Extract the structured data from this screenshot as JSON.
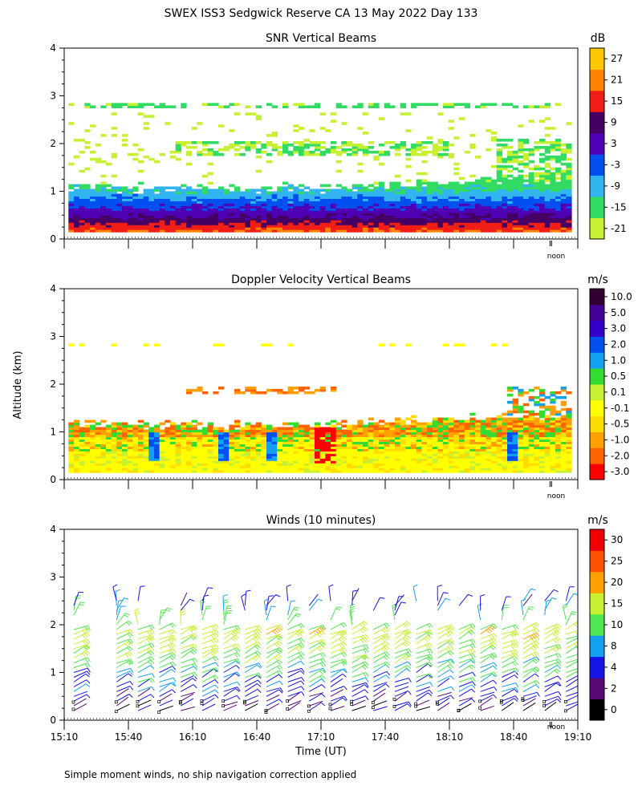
{
  "title": "SWEX ISS3 Sedgwick Reserve CA  13 May 2022 Day 133",
  "footnote": "Simple moment winds, no ship navigation correction applied",
  "ylabel": "Altitude (km)",
  "xlabel": "Time (UT)",
  "noon_label": "noon",
  "x_ticks": [
    "15:10",
    "15:40",
    "16:10",
    "16:40",
    "17:10",
    "17:40",
    "18:10",
    "18:40",
    "19:10"
  ],
  "y_ticks": [
    "0",
    "1",
    "2",
    "3",
    "4"
  ],
  "colors": {
    "snr": [
      "#c8f032",
      "#32dc64",
      "#32b4f0",
      "#0050f0",
      "#5000b4",
      "#460064",
      "#f01e14",
      "#ff8200",
      "#ffc800"
    ],
    "vel": [
      "#ff0000",
      "#ff6400",
      "#ffa000",
      "#ffdc00",
      "#ffff00",
      "#c8f032",
      "#32dc32",
      "#14a0f0",
      "#0050f0",
      "#3200c8",
      "#460096",
      "#320032"
    ],
    "wind": [
      "#000000",
      "#5a0a78",
      "#1414e6",
      "#14a0f0",
      "#50e650",
      "#c8f032",
      "#ffa000",
      "#ff5000",
      "#f00000"
    ]
  },
  "chart_data": [
    {
      "type": "heatmap",
      "title": "SNR Vertical Beams",
      "unit": "dB",
      "xlim": [
        "15:10",
        "19:10"
      ],
      "ylim": [
        0,
        4
      ],
      "colorbar_ticks": [
        "-21",
        "-15",
        "-9",
        "-3",
        "3",
        "9",
        "15",
        "21",
        "27"
      ],
      "colorbar_range": [
        -24,
        30
      ],
      "profile": [
        {
          "alt_km": 0.25,
          "snr_db": 14
        },
        {
          "alt_km": 0.45,
          "snr_db": 6
        },
        {
          "alt_km": 0.65,
          "snr_db": 0
        },
        {
          "alt_km": 0.85,
          "snr_db": -7
        },
        {
          "alt_km": 1.05,
          "snr_db": -13
        },
        {
          "alt_km": 1.25,
          "snr_db": -18
        },
        {
          "alt_km": 2.0,
          "snr_db": -20
        },
        {
          "alt_km": 2.8,
          "snr_db": -19
        }
      ]
    },
    {
      "type": "heatmap",
      "title": "Doppler Velocity Vertical Beams",
      "unit": "m/s",
      "xlim": [
        "15:10",
        "19:10"
      ],
      "ylim": [
        0,
        4
      ],
      "colorbar_ticks": [
        "-3.0",
        "-2.0",
        "-1.0",
        "-0.5",
        "-0.1",
        "0.1",
        "0.5",
        "1.0",
        "2.0",
        "3.0",
        "5.0",
        "10.0"
      ],
      "profile": [
        {
          "alt_km": 0.3,
          "velocity_ms": -0.2
        },
        {
          "alt_km": 0.9,
          "velocity_ms": -0.6
        },
        {
          "alt_km": 1.1,
          "velocity_ms": -1.5
        },
        {
          "alt_km": 1.9,
          "velocity_ms": -1.5
        }
      ]
    },
    {
      "type": "scatter",
      "title": "Winds (10 minutes)",
      "unit": "m/s",
      "xlim": [
        "15:10",
        "19:10"
      ],
      "ylim": [
        0,
        4
      ],
      "colorbar_ticks": [
        "0",
        "2",
        "4",
        "8",
        "10",
        "15",
        "20",
        "25",
        "30"
      ],
      "profile_times_min": [
        0,
        20,
        30,
        40,
        50,
        60,
        70,
        80,
        90,
        100,
        110,
        120,
        130,
        140,
        150,
        160,
        170,
        180,
        190,
        200,
        210,
        220,
        230
      ],
      "representative_speeds_ms": [
        {
          "alt_km": 0.3,
          "speed_ms": 4
        },
        {
          "alt_km": 0.8,
          "speed_ms": 8
        },
        {
          "alt_km": 1.3,
          "speed_ms": 14
        },
        {
          "alt_km": 1.8,
          "speed_ms": 18
        },
        {
          "alt_km": 2.4,
          "speed_ms": 6
        }
      ]
    }
  ]
}
